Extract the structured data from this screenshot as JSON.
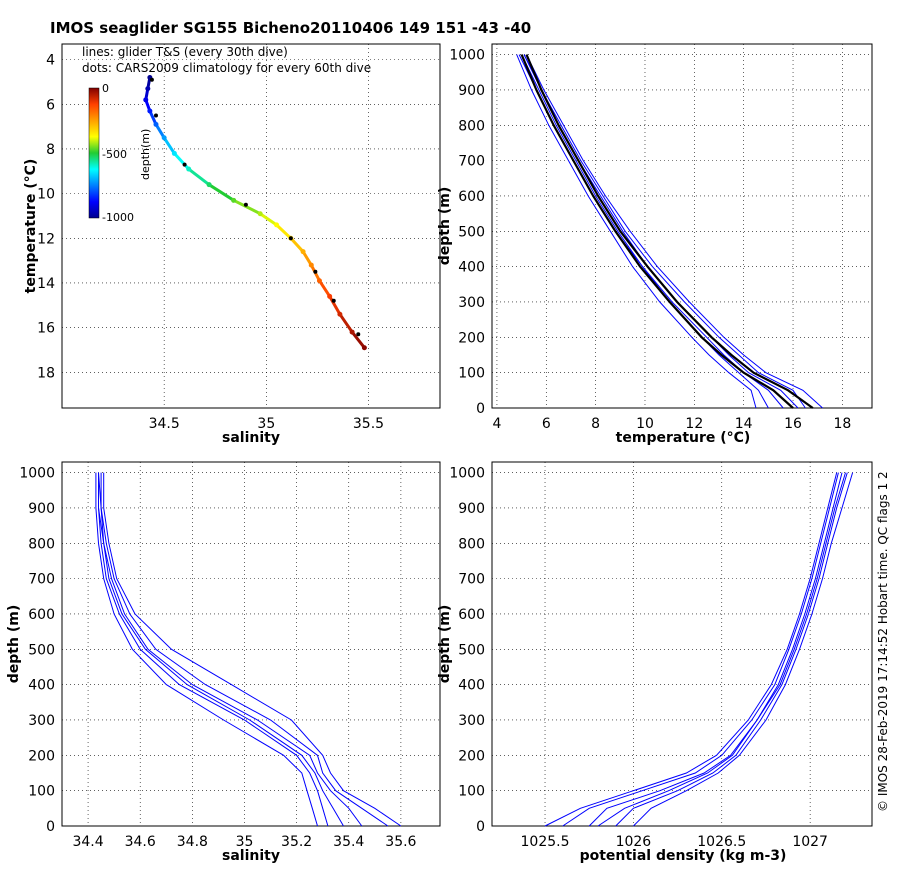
{
  "figure": {
    "title": "IMOS seaglider SG155 Bicheno20110406 149  151  -43  -40",
    "note_lines": "lines: glider T&S (every 30th dive)",
    "note_dots": "dots: CARS2009 climatology for every 60th dive",
    "colorbar_label": "depth(m)",
    "colorbar_ticks": [
      "0",
      "-500",
      "-1000"
    ],
    "credit": "© IMOS 28-Feb-2019 17:14:52 Hobart time. QC flags 1  2"
  },
  "colors": {
    "glider_profiles": "#0000ff",
    "climatology": "#000000",
    "grid": "#000000"
  },
  "chart_data": [
    {
      "type": "scatter",
      "panel": "ts-diagram",
      "xlabel": "salinity",
      "ylabel": "temperature (°C)",
      "xlim": [
        34.0,
        35.85
      ],
      "ylim": [
        3.3,
        19.6
      ],
      "xticks": [
        "34.5",
        "35",
        "35.5"
      ],
      "yticks": [
        "4",
        "6",
        "8",
        "10",
        "12",
        "14",
        "16",
        "18"
      ],
      "grid": true,
      "colormap": "jet by depth 0 to -1000 m",
      "series": [
        {
          "name": "lines: glider T&S (every 30th dive)",
          "points": [
            {
              "s": 34.43,
              "t": 4.8,
              "d": -1000
            },
            {
              "s": 34.42,
              "t": 5.3,
              "d": -960
            },
            {
              "s": 34.41,
              "t": 5.8,
              "d": -900
            },
            {
              "s": 34.43,
              "t": 6.3,
              "d": -850
            },
            {
              "s": 34.46,
              "t": 6.9,
              "d": -780
            },
            {
              "s": 34.5,
              "t": 7.5,
              "d": -720
            },
            {
              "s": 34.55,
              "t": 8.2,
              "d": -650
            },
            {
              "s": 34.62,
              "t": 8.9,
              "d": -590
            },
            {
              "s": 34.72,
              "t": 9.6,
              "d": -530
            },
            {
              "s": 34.84,
              "t": 10.3,
              "d": -470
            },
            {
              "s": 34.97,
              "t": 10.9,
              "d": -420
            },
            {
              "s": 35.05,
              "t": 11.4,
              "d": -370
            },
            {
              "s": 35.12,
              "t": 12.0,
              "d": -320
            },
            {
              "s": 35.18,
              "t": 12.6,
              "d": -270
            },
            {
              "s": 35.22,
              "t": 13.2,
              "d": -220
            },
            {
              "s": 35.26,
              "t": 13.9,
              "d": -170
            },
            {
              "s": 35.31,
              "t": 14.6,
              "d": -120
            },
            {
              "s": 35.36,
              "t": 15.4,
              "d": -80
            },
            {
              "s": 35.42,
              "t": 16.2,
              "d": -40
            },
            {
              "s": 35.48,
              "t": 16.9,
              "d": -10
            }
          ]
        },
        {
          "name": "dots: CARS2009 climatology for every 60th dive",
          "points": [
            {
              "s": 34.44,
              "t": 4.9,
              "d": -1000
            },
            {
              "s": 34.46,
              "t": 6.5,
              "d": -800
            },
            {
              "s": 34.6,
              "t": 8.7,
              "d": -600
            },
            {
              "s": 34.9,
              "t": 10.5,
              "d": -450
            },
            {
              "s": 35.12,
              "t": 12.0,
              "d": -320
            },
            {
              "s": 35.24,
              "t": 13.5,
              "d": -200
            },
            {
              "s": 35.33,
              "t": 14.8,
              "d": -100
            },
            {
              "s": 35.45,
              "t": 16.3,
              "d": -30
            }
          ]
        }
      ]
    },
    {
      "type": "line",
      "panel": "temperature-profile",
      "xlabel": "temperature (°C)",
      "ylabel": "depth (m)",
      "xlim": [
        3.8,
        19.2
      ],
      "ylim": [
        1030,
        0
      ],
      "xticks": [
        "4",
        "6",
        "8",
        "10",
        "12",
        "14",
        "16",
        "18"
      ],
      "yticks": [
        "0",
        "100",
        "200",
        "300",
        "400",
        "500",
        "600",
        "700",
        "800",
        "900",
        "1000"
      ],
      "grid": true,
      "depth": [
        0,
        50,
        100,
        150,
        200,
        300,
        400,
        500,
        600,
        700,
        800,
        900,
        1000
      ],
      "profiles": [
        [
          15.0,
          14.6,
          13.8,
          13.0,
          12.3,
          11.0,
          9.9,
          8.9,
          8.0,
          7.2,
          6.4,
          5.7,
          5.0
        ],
        [
          16.2,
          15.5,
          14.2,
          13.4,
          12.7,
          11.3,
          10.1,
          9.1,
          8.2,
          7.3,
          6.5,
          5.8,
          5.1
        ],
        [
          17.2,
          16.4,
          14.9,
          14.0,
          13.2,
          11.8,
          10.5,
          9.4,
          8.4,
          7.5,
          6.7,
          5.9,
          5.2
        ],
        [
          14.5,
          14.3,
          13.4,
          12.6,
          11.9,
          10.6,
          9.5,
          8.6,
          7.7,
          6.9,
          6.1,
          5.4,
          4.8
        ],
        [
          16.5,
          16.0,
          14.6,
          13.8,
          13.0,
          11.6,
          10.3,
          9.2,
          8.3,
          7.4,
          6.6,
          5.8,
          5.1
        ],
        [
          15.6,
          15.0,
          14.0,
          13.2,
          12.5,
          11.1,
          9.9,
          8.8,
          7.9,
          7.1,
          6.3,
          5.6,
          4.9
        ]
      ],
      "climatology": [
        [
          16.0,
          15.2,
          14.0,
          13.1,
          12.3,
          11.0,
          9.8,
          8.8,
          7.9,
          7.1,
          6.3,
          5.6,
          5.0
        ],
        [
          16.8,
          15.8,
          14.4,
          13.5,
          12.7,
          11.3,
          10.1,
          9.0,
          8.1,
          7.3,
          6.5,
          5.8,
          5.2
        ]
      ]
    },
    {
      "type": "line",
      "panel": "salinity-profile",
      "xlabel": "salinity",
      "ylabel": "depth (m)",
      "xlim": [
        34.3,
        35.75
      ],
      "ylim": [
        1030,
        0
      ],
      "xticks": [
        "34.4",
        "34.6",
        "34.8",
        "35",
        "35.2",
        "35.4",
        "35.6"
      ],
      "yticks": [
        "0",
        "100",
        "200",
        "300",
        "400",
        "500",
        "600",
        "700",
        "800",
        "900",
        "1000"
      ],
      "grid": true,
      "depth": [
        0,
        50,
        100,
        150,
        200,
        300,
        400,
        500,
        600,
        700,
        800,
        900,
        1000
      ],
      "profiles": [
        [
          35.32,
          35.3,
          35.28,
          35.25,
          35.2,
          35.0,
          34.75,
          34.6,
          34.52,
          34.47,
          34.45,
          34.44,
          34.44
        ],
        [
          35.55,
          35.45,
          35.35,
          35.3,
          35.28,
          35.1,
          34.85,
          34.66,
          34.56,
          34.5,
          34.47,
          34.45,
          34.45
        ],
        [
          35.45,
          35.4,
          35.33,
          35.28,
          35.25,
          35.05,
          34.8,
          34.63,
          34.54,
          34.49,
          34.46,
          34.45,
          34.44
        ],
        [
          35.28,
          35.26,
          35.24,
          35.22,
          35.15,
          34.92,
          34.7,
          34.57,
          34.5,
          34.46,
          34.44,
          34.43,
          34.43
        ],
        [
          35.6,
          35.5,
          35.38,
          35.33,
          35.3,
          35.18,
          34.95,
          34.72,
          34.58,
          34.51,
          34.48,
          34.46,
          34.46
        ],
        [
          35.38,
          35.34,
          35.3,
          35.27,
          35.22,
          35.02,
          34.78,
          34.62,
          34.53,
          34.48,
          34.46,
          34.44,
          34.44
        ]
      ]
    },
    {
      "type": "line",
      "panel": "density-profile",
      "xlabel": "potential density (kg m-3)",
      "ylabel": "depth (m)",
      "xlim": [
        1025.2,
        1027.35
      ],
      "ylim": [
        1030,
        0
      ],
      "xticks": [
        "1025.5",
        "1026",
        "1026.5",
        "1027"
      ],
      "yticks": [
        "0",
        "100",
        "200",
        "300",
        "400",
        "500",
        "600",
        "700",
        "800",
        "900",
        "1000"
      ],
      "grid": true,
      "depth": [
        0,
        50,
        100,
        150,
        200,
        300,
        400,
        500,
        600,
        700,
        800,
        900,
        1000
      ],
      "profiles": [
        [
          1025.75,
          1025.85,
          1026.15,
          1026.4,
          1026.55,
          1026.7,
          1026.82,
          1026.9,
          1026.97,
          1027.03,
          1027.08,
          1027.13,
          1027.18
        ],
        [
          1025.6,
          1025.75,
          1026.05,
          1026.35,
          1026.5,
          1026.67,
          1026.8,
          1026.88,
          1026.95,
          1027.01,
          1027.06,
          1027.11,
          1027.16
        ],
        [
          1025.9,
          1026.0,
          1026.25,
          1026.45,
          1026.58,
          1026.72,
          1026.84,
          1026.92,
          1026.99,
          1027.05,
          1027.1,
          1027.15,
          1027.21
        ],
        [
          1026.0,
          1026.1,
          1026.3,
          1026.48,
          1026.6,
          1026.75,
          1026.86,
          1026.94,
          1027.01,
          1027.07,
          1027.12,
          1027.18,
          1027.24
        ],
        [
          1025.5,
          1025.7,
          1026.0,
          1026.3,
          1026.47,
          1026.65,
          1026.78,
          1026.87,
          1026.94,
          1027.0,
          1027.05,
          1027.1,
          1027.15
        ],
        [
          1025.8,
          1025.95,
          1026.2,
          1026.42,
          1026.56,
          1026.7,
          1026.83,
          1026.91,
          1026.98,
          1027.04,
          1027.09,
          1027.14,
          1027.2
        ]
      ]
    }
  ]
}
